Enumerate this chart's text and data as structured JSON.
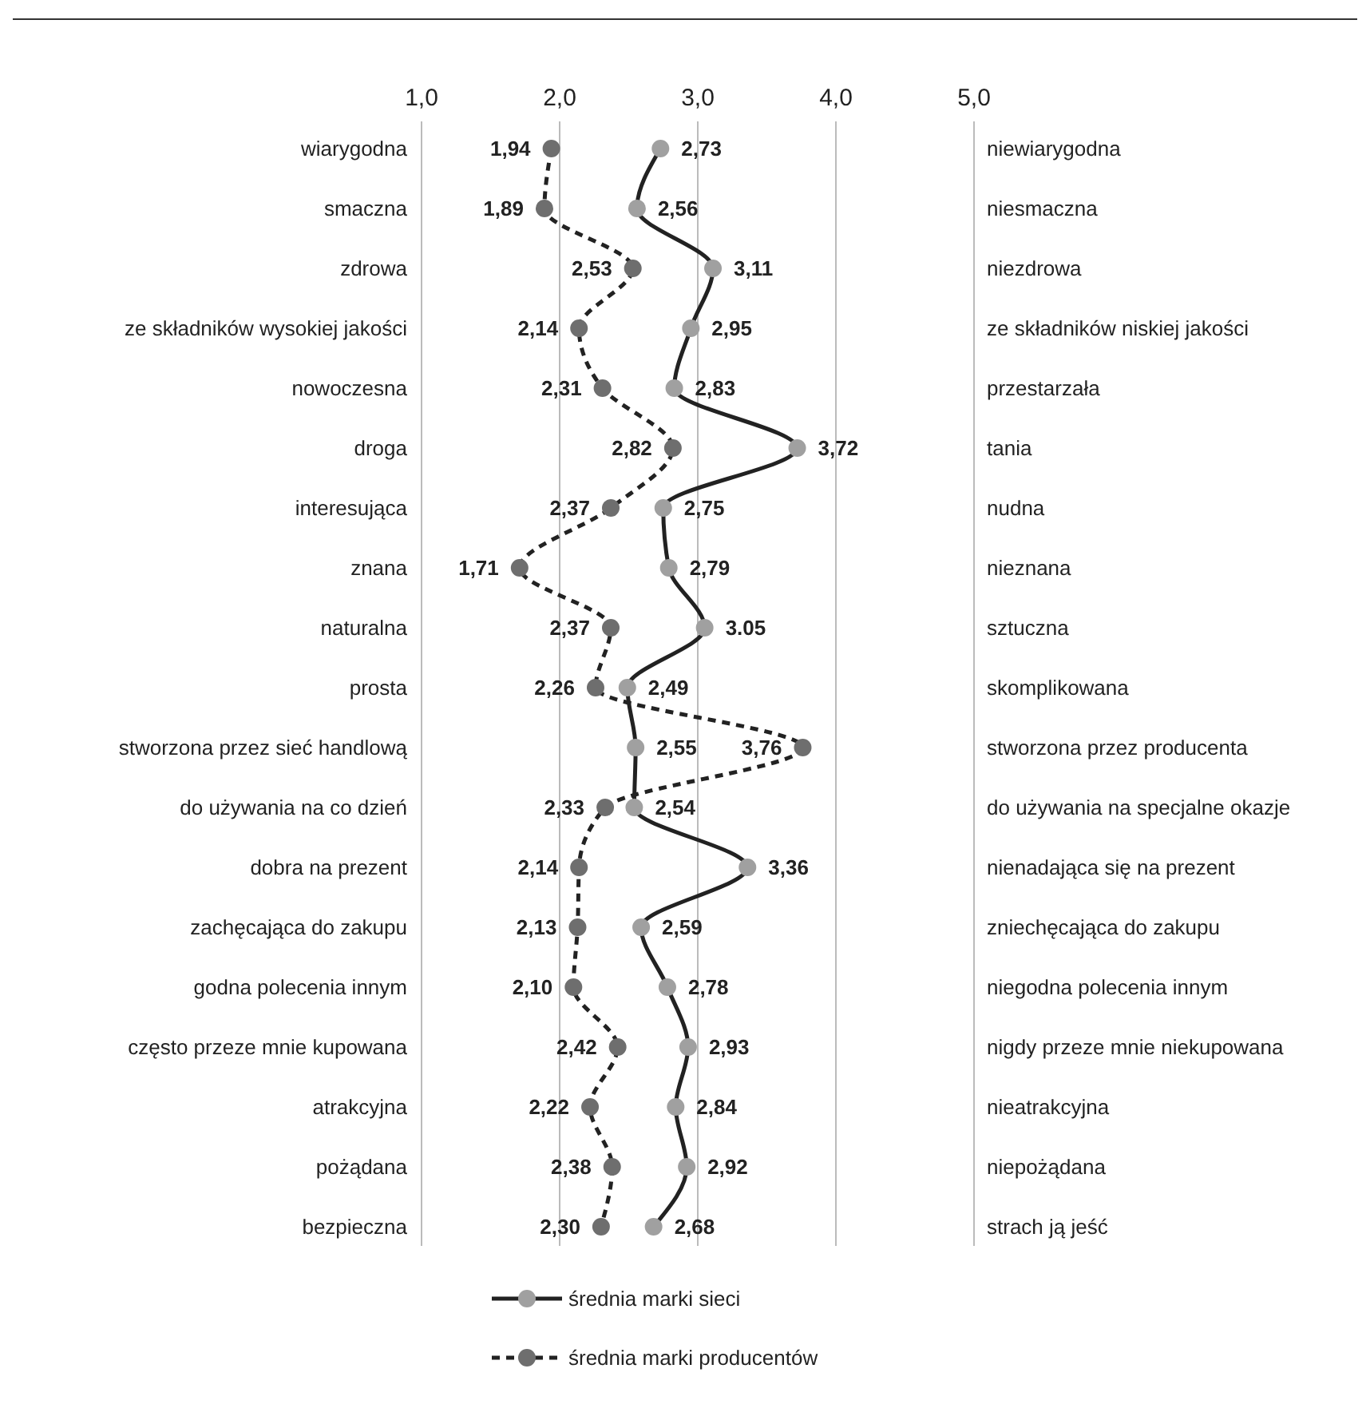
{
  "chart_data": {
    "type": "line",
    "orientation": "horizontal",
    "categories": [
      "wiarygodna",
      "smaczna",
      "zdrowa",
      "ze składników wysokiej jakości",
      "nowoczesna",
      "droga",
      "interesująca",
      "znana",
      "naturalna",
      "prosta",
      "stworzona przez sieć handlową",
      "do używania na co dzień",
      "dobra na prezent",
      "zachęcająca do zakupu",
      "godna polecenia innym",
      "często przeze mnie kupowana",
      "atrakcyjna",
      "pożądana",
      "bezpieczna"
    ],
    "y2_categories": [
      "niewiarygodna",
      "niesmaczna",
      "niezdrowa",
      "ze składników niskiej jakości",
      "przestarzała",
      "tania",
      "nudna",
      "nieznana",
      "sztuczna",
      "skomplikowana",
      "stworzona przez producenta",
      "do używania na specjalne okazje",
      "nienadająca się na prezent",
      "zniechęcająca do zakupu",
      "niegodna polecenia innym",
      "nigdy przeze mnie niekupowana",
      "nieatrakcyjna",
      "niepożądana",
      "strach ją jeść"
    ],
    "xlim": [
      1,
      5
    ],
    "xticks": [
      {
        "value": 1,
        "label": "1,0"
      },
      {
        "value": 2,
        "label": "2,0"
      },
      {
        "value": 3,
        "label": "3,0"
      },
      {
        "value": 4,
        "label": "4,0"
      },
      {
        "value": 5,
        "label": "5,0"
      }
    ],
    "grid": "x",
    "legend": "bottom",
    "marker": "circle",
    "series": [
      {
        "name": "średnia marki sieci",
        "color": "#a0a0a0",
        "line_style": "solid",
        "values": [
          2.73,
          2.56,
          3.11,
          2.95,
          2.83,
          3.72,
          2.75,
          2.79,
          3.05,
          2.49,
          2.55,
          2.54,
          3.36,
          2.59,
          2.78,
          2.93,
          2.84,
          2.92,
          2.68
        ],
        "value_labels": [
          "2,73",
          "2,56",
          "3,11",
          "2,95",
          "2,83",
          "3,72",
          "2,75",
          "2,79",
          "3.05",
          "2,49",
          "2,55",
          "2,54",
          "3,36",
          "2,59",
          "2,78",
          "2,93",
          "2,84",
          "2,92",
          "2,68"
        ]
      },
      {
        "name": "średnia marki producentów",
        "color": "#6e6e6e",
        "line_style": "dashed",
        "values": [
          1.94,
          1.89,
          2.53,
          2.14,
          2.31,
          2.82,
          2.37,
          1.71,
          2.37,
          2.26,
          3.76,
          2.33,
          2.14,
          2.13,
          2.1,
          2.42,
          2.22,
          2.38,
          2.3
        ],
        "value_labels": [
          "1,94",
          "1,89",
          "2,53",
          "2,14",
          "2,31",
          "2,82",
          "2,37",
          "1,71",
          "2,37",
          "2,26",
          "3,76",
          "2,33",
          "2,14",
          "2,13",
          "2,10",
          "2,42",
          "2,22",
          "2,38",
          "2,30"
        ]
      }
    ]
  }
}
